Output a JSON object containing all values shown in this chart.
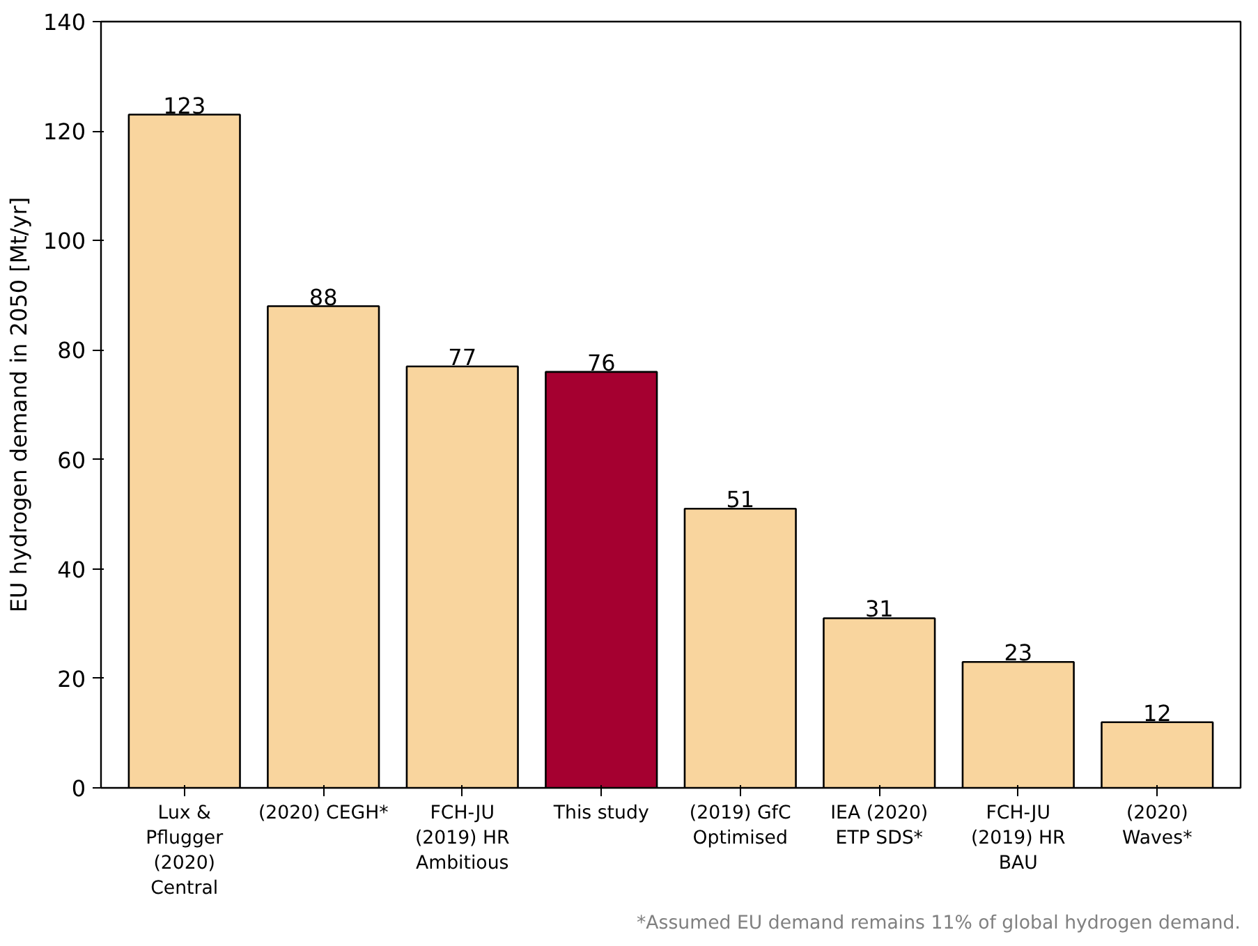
{
  "chart_data": {
    "type": "bar",
    "categories": [
      "Lux & Pflugger (2020) Central",
      "(2020) CEGH*",
      "FCH-JU (2019) HR Ambitious",
      "This study",
      "(2019) GfC Optimised",
      "IEA (2020) ETP SDS*",
      "FCH-JU (2019) HR BAU",
      "(2020) Waves*"
    ],
    "values": [
      123,
      88,
      77,
      76,
      51,
      31,
      23,
      12
    ],
    "colors": [
      "#f9d59e",
      "#f9d59e",
      "#f9d59e",
      "#a50030",
      "#f9d59e",
      "#f9d59e",
      "#f9d59e",
      "#f9d59e"
    ],
    "ylabel": "EU hydrogen demand in 2050 [Mt/yr]",
    "ylim": [
      0,
      140
    ],
    "yticks": [
      0,
      20,
      40,
      60,
      80,
      100,
      120,
      140
    ],
    "data_labels": true,
    "grid": false,
    "annotations": [
      "*Assumed EU demand remains 11% of global hydrogen demand."
    ]
  }
}
